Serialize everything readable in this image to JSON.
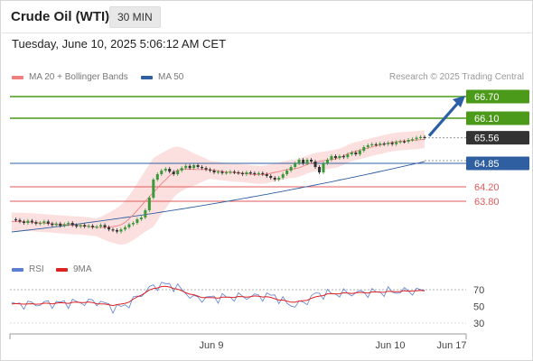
{
  "header": {
    "title": "Crude Oil (WTI)",
    "timeframe": "30 MIN",
    "datetime": "Tuesday, June 10, 2025 5:06:12 AM CET"
  },
  "legend": {
    "ma20_label": "MA 20 + Bollinger Bands",
    "ma50_label": "MA 50",
    "credit": "Research © 2025 Trading Central"
  },
  "rsi_legend": {
    "rsi_label": "RSI",
    "ma_label": "9MA"
  },
  "colors": {
    "resistance": "#4c9a1a",
    "support": "#e05a5a",
    "ma50": "#2f5fa0",
    "current": "#333333",
    "ma20": "#f08080",
    "band_fill": "#fbd5d5",
    "rsi": "#5b7fd4",
    "rsi_ma": "#dd2222",
    "arrow": "#2a5ea6",
    "candle_up": "#3a9a3a",
    "candle_down": "#333333"
  },
  "chart_data": [
    {
      "type": "line",
      "title": "",
      "price_levels": [
        {
          "value": 66.7,
          "label": "66.70",
          "kind": "resistance"
        },
        {
          "value": 66.1,
          "label": "66.10",
          "kind": "resistance"
        },
        {
          "value": 65.56,
          "label": "65.56",
          "kind": "current"
        },
        {
          "value": 64.85,
          "label": "64.85",
          "kind": "pivot"
        },
        {
          "value": 64.2,
          "label": "64.20",
          "kind": "support"
        },
        {
          "value": 63.8,
          "label": "63.80",
          "kind": "support"
        }
      ],
      "x_ticks": [
        "Jun 9",
        "Jun 10",
        "Jun 17"
      ],
      "ylim": [
        62.5,
        67.0
      ],
      "close_series": [
        63.3,
        63.28,
        63.24,
        63.2,
        63.26,
        63.22,
        63.18,
        63.2,
        63.24,
        63.18,
        63.14,
        63.18,
        63.12,
        63.16,
        63.2,
        63.14,
        63.1,
        63.14,
        63.1,
        63.12,
        63.08,
        63.1,
        63.14,
        63.08,
        63.02,
        63.0,
        62.96,
        63.02,
        63.08,
        63.16,
        63.2,
        63.3,
        63.35,
        63.55,
        63.9,
        64.4,
        64.55,
        64.65,
        64.7,
        64.62,
        64.55,
        64.65,
        64.72,
        64.78,
        64.72,
        64.8,
        64.75,
        64.72,
        64.68,
        64.65,
        64.6,
        64.62,
        64.58,
        64.6,
        64.62,
        64.6,
        64.58,
        64.55,
        64.6,
        64.58,
        64.55,
        64.58,
        64.55,
        64.5,
        64.45,
        64.4,
        64.45,
        64.55,
        64.65,
        64.75,
        64.85,
        64.95,
        64.85,
        64.95,
        64.9,
        64.75,
        64.6,
        64.85,
        64.95,
        65.05,
        65.0,
        65.05,
        65.02,
        65.1,
        65.15,
        65.1,
        65.2,
        65.3,
        65.35,
        65.38,
        65.36,
        65.4,
        65.38,
        65.42,
        65.38,
        65.44,
        65.46,
        65.45,
        65.5,
        65.52,
        65.56,
        65.58,
        65.56
      ],
      "ma50_start": 62.95,
      "ma50_end": 64.9,
      "ma20_start": 63.25,
      "ma20_end": 65.35
    },
    {
      "type": "line",
      "title": "",
      "y_ticks": [
        70,
        50,
        30
      ],
      "ylim": [
        20,
        85
      ],
      "rsi_start": 52,
      "rsi_end": 69,
      "rsi_ma_start": 52,
      "rsi_ma_end": 67
    }
  ],
  "icons": {
    "arrow": "up-right-arrow-icon"
  }
}
